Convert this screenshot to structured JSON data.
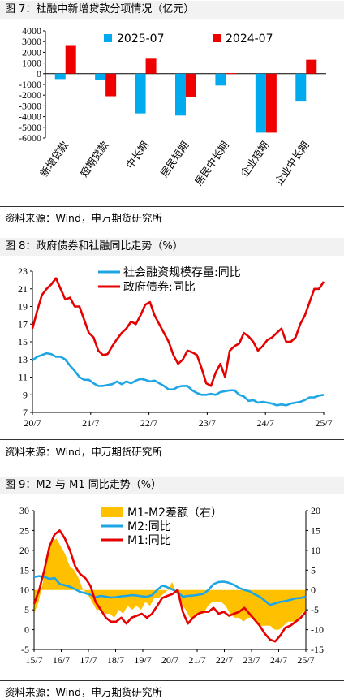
{
  "charts": [
    {
      "fig_title": "图 7：社融中新增贷款分项情况（亿元）",
      "source": "资料来源：Wind，申万期货研究所"
    },
    {
      "fig_title": "图 8：政府债券和社融同比走势（%）",
      "source": "资料来源：Wind，申万期货研究所"
    },
    {
      "fig_title": "图 9：M2 与 M1 同比走势（%）",
      "source": "资料来源：Wind，申万期货研究所"
    }
  ],
  "chart_data": [
    {
      "type": "bar",
      "categories": [
        "新增贷款",
        "短期贷款",
        "中长期",
        "居民短期",
        "居民中长期",
        "企业短期",
        "企业中长期"
      ],
      "series": [
        {
          "name": "2025-07",
          "color": "#00aaee",
          "values": [
            -500,
            -600,
            -3700,
            -3900,
            -1100,
            -5500,
            -2600
          ]
        },
        {
          "name": "2024-07",
          "color": "#ee0000",
          "values": [
            2600,
            -2100,
            1400,
            -2200,
            50,
            -5500,
            1300
          ]
        }
      ],
      "ylim": [
        -6000,
        4000
      ],
      "yticks": [
        "4000",
        "3000",
        "2000",
        "1000",
        "0",
        "-1000",
        "-2000",
        "-3000",
        "-4000",
        "-5000",
        "-6000"
      ],
      "legend": "top"
    },
    {
      "type": "line",
      "x_ticks": [
        "20/7",
        "21/7",
        "22/7",
        "23/7",
        "24/7",
        "25/7"
      ],
      "x_range": [
        "2020-07",
        "2025-07"
      ],
      "yticks": [
        "23",
        "21",
        "19",
        "17",
        "15",
        "13",
        "11",
        "9",
        "7"
      ],
      "ylim": [
        7,
        23
      ],
      "legend": "top",
      "series": [
        {
          "name": "社会融资规模存量:同比",
          "color": "#1ea6e4",
          "values": [
            12.9,
            13.3,
            13.5,
            13.7,
            13.6,
            13.3,
            13.3,
            13.0,
            12.3,
            11.7,
            11.0,
            10.7,
            10.7,
            10.3,
            10.0,
            10.0,
            10.1,
            10.2,
            10.5,
            10.2,
            10.5,
            10.3,
            10.6,
            10.8,
            10.7,
            10.5,
            10.6,
            10.3,
            10.0,
            9.6,
            9.6,
            9.9,
            10.0,
            10.0,
            9.5,
            9.2,
            9.0,
            9.0,
            9.1,
            9.0,
            9.3,
            9.4,
            9.5,
            9.5,
            9.0,
            8.8,
            8.3,
            8.4,
            8.1,
            8.2,
            8.1,
            8.0,
            7.8,
            7.9,
            7.8,
            8.0,
            8.1,
            8.2,
            8.4,
            8.7,
            8.7,
            8.9,
            9.0
          ]
        },
        {
          "name": "政府债券:同比",
          "color": "#e60000",
          "values": [
            16.5,
            18.5,
            20.3,
            21.0,
            21.5,
            22.2,
            21.0,
            19.8,
            20.0,
            19.0,
            19.0,
            17.5,
            16.0,
            15.5,
            14.0,
            13.5,
            13.6,
            14.5,
            15.3,
            16.0,
            16.5,
            17.3,
            17.0,
            18.0,
            19.2,
            19.5,
            18.0,
            17.0,
            16.0,
            15.0,
            13.5,
            12.5,
            13.0,
            14.0,
            13.8,
            13.5,
            12.0,
            10.3,
            10.0,
            11.5,
            12.5,
            11.0,
            14.0,
            14.5,
            14.8,
            16.0,
            15.6,
            15.0,
            14.0,
            14.5,
            15.2,
            15.5,
            16.0,
            16.5,
            15.0,
            15.0,
            15.5,
            17.0,
            18.0,
            19.5,
            21.0,
            21.0,
            21.8
          ]
        }
      ]
    },
    {
      "type": "line",
      "x_ticks": [
        "15/7",
        "16/7",
        "17/7",
        "18/7",
        "19/7",
        "20/7",
        "21/7",
        "22/7",
        "23/7",
        "24/7",
        "25/7"
      ],
      "x_range": [
        "2015-07",
        "2025-07"
      ],
      "ylim_left": [
        -5,
        30
      ],
      "yticks_left": [
        "30",
        "25",
        "20",
        "15",
        "10",
        "5",
        "0",
        "-5"
      ],
      "ylim_right": [
        -15,
        20
      ],
      "yticks_right": [
        "20",
        "15",
        "10",
        "5",
        "0",
        "-5",
        "-10",
        "-15"
      ],
      "legend": "top",
      "series": [
        {
          "name": "M1-M2差额（右）",
          "type": "area",
          "axis": "right",
          "color": "#ffc000",
          "values": [
            -6,
            -3,
            2,
            9,
            12,
            13,
            11,
            9,
            6,
            5,
            3,
            0,
            -1,
            -3,
            -5,
            -5,
            -6,
            -6,
            -7,
            -5,
            -6,
            -4,
            -5,
            -4,
            -5,
            -3,
            -4,
            -2,
            -2,
            -1,
            0,
            2,
            -1,
            -3,
            -5,
            -7,
            -7,
            -6,
            -6,
            -4,
            -3,
            -3,
            -3,
            -4,
            -6,
            -7,
            -7,
            -8,
            -7,
            -7,
            -8,
            -9,
            -9,
            -9,
            -10,
            -10,
            -9,
            -8,
            -8,
            -8,
            -6,
            -5
          ]
        },
        {
          "name": "M2:同比",
          "type": "line",
          "axis": "left",
          "color": "#1ea6e4",
          "values": [
            13.3,
            13.5,
            13.3,
            12.8,
            13.0,
            11.5,
            11.2,
            10.8,
            10.2,
            9.5,
            9.2,
            8.8,
            8.2,
            8.5,
            8.3,
            8.1,
            8.2,
            8.4,
            8.5,
            8.7,
            8.6,
            8.4,
            8.3,
            8.7,
            10.0,
            11.1,
            10.7,
            10.1,
            9.4,
            8.3,
            8.5,
            8.6,
            8.8,
            9.0,
            10.0,
            11.5,
            12.0,
            12.1,
            11.8,
            11.3,
            10.5,
            10.0,
            9.7,
            8.9,
            8.3,
            7.3,
            6.2,
            6.6,
            7.0,
            7.2,
            7.5,
            7.9,
            8.0,
            8.3
          ]
        },
        {
          "name": "M1:同比",
          "type": "line",
          "axis": "left",
          "color": "#e60000",
          "values": [
            6.5,
            10.0,
            15.0,
            21.0,
            24.0,
            25.0,
            23.0,
            20.0,
            16.0,
            14.0,
            13.0,
            11.0,
            7.0,
            5.0,
            3.0,
            2.0,
            2.0,
            3.0,
            1.5,
            3.0,
            3.5,
            4.0,
            3.0,
            4.0,
            6.0,
            8.0,
            8.5,
            9.0,
            10.0,
            4.5,
            1.5,
            3.0,
            4.0,
            4.5,
            4.5,
            5.5,
            4.0,
            4.5,
            3.5,
            4.0,
            4.5,
            5.5,
            4.0,
            2.5,
            1.0,
            -1.0,
            -2.5,
            -3.0,
            -1.5,
            0.5,
            1.0,
            2.0,
            3.0,
            4.5
          ]
        }
      ]
    }
  ]
}
